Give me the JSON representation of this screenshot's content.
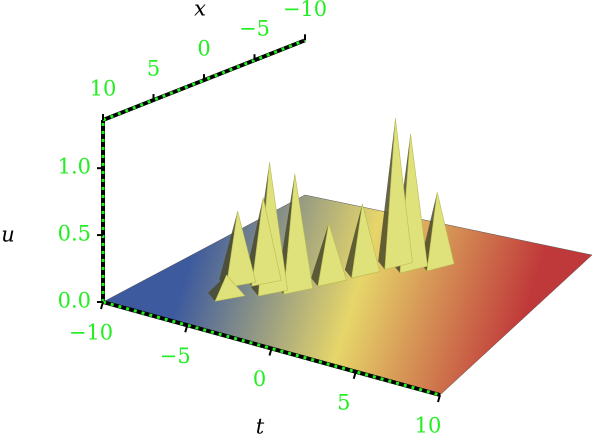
{
  "chart_data": {
    "type": "surface3d",
    "axis_labels": {
      "t": "t",
      "x": "x",
      "u": "u"
    },
    "tlim": [
      -10,
      10
    ],
    "xlim": [
      10,
      -10
    ],
    "ulim": [
      0,
      1.36
    ],
    "tticks": [
      {
        "value": -10,
        "label": "−10"
      },
      {
        "value": -5,
        "label": "−5"
      },
      0,
      5,
      10
    ],
    "xticks": [
      10,
      5,
      0,
      {
        "value": -5,
        "label": "−5"
      },
      {
        "value": -10,
        "label": "−10"
      }
    ],
    "uticks": [
      {
        "value": 0,
        "label": "0.0"
      },
      0.5,
      {
        "value": 1,
        "label": "1.0"
      }
    ],
    "colormap": [
      "#3d5a9e",
      "#e6d66a",
      "#c0393a"
    ],
    "peak_color": "#dfe27a",
    "axis_color": "#000000",
    "tick_color": "#22ee22",
    "peaks": {
      "t": [
        2.2,
        1.0,
        0.0,
        -1.0,
        -2.0,
        -3.0,
        -4.0,
        -5.0,
        -6.0,
        -5.5
      ],
      "x": [
        -5,
        -4,
        -4,
        -2,
        0,
        2,
        3,
        2,
        3,
        5
      ],
      "u": [
        0.6,
        1.1,
        1.2,
        0.55,
        0.45,
        0.9,
        1.0,
        0.65,
        0.55,
        0.15
      ]
    }
  }
}
